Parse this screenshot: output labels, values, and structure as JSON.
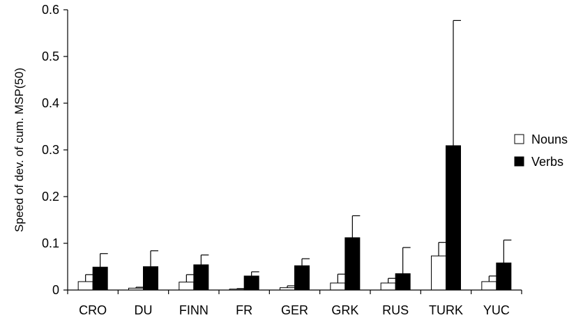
{
  "chart_data": {
    "type": "bar",
    "title": "",
    "xlabel": "",
    "ylabel": "Speed of dev. of cum. MSP(50)",
    "ylim": [
      0,
      0.6
    ],
    "yticks": [
      0,
      0.1,
      0.2,
      0.3,
      0.4,
      0.5,
      0.6
    ],
    "ytick_labels": [
      "0",
      "0.1",
      "0.2",
      "0.3",
      "0.4",
      "0.5",
      "0.6"
    ],
    "categories": [
      "CRO",
      "DU",
      "FINN",
      "FR",
      "GER",
      "GRK",
      "RUS",
      "TURK",
      "YUC"
    ],
    "series": [
      {
        "name": "Nouns",
        "values": [
          0.018,
          0.004,
          0.017,
          0.002,
          0.005,
          0.015,
          0.015,
          0.073,
          0.018
        ],
        "error_upper": [
          0.033,
          0.006,
          0.033,
          0.003,
          0.009,
          0.034,
          0.025,
          0.102,
          0.03
        ]
      },
      {
        "name": "Verbs",
        "values": [
          0.049,
          0.05,
          0.054,
          0.03,
          0.052,
          0.112,
          0.035,
          0.309,
          0.058
        ],
        "error_upper": [
          0.078,
          0.084,
          0.075,
          0.039,
          0.067,
          0.159,
          0.091,
          0.577,
          0.107
        ]
      }
    ],
    "colors": {
      "Nouns": "#ffffff",
      "Verbs": "#000000"
    },
    "error_bars": "upper-only",
    "grid": false,
    "legend_position": "right"
  }
}
